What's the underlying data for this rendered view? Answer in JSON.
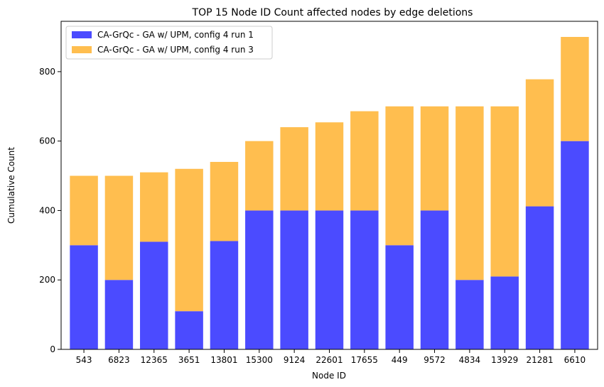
{
  "chart_data": {
    "type": "bar",
    "stacked": true,
    "title": "TOP 15 Node ID Count affected nodes by edge deletions",
    "xlabel": "Node ID",
    "ylabel": "Cumulative Count",
    "categories": [
      "543",
      "6823",
      "12365",
      "3651",
      "13801",
      "15300",
      "9124",
      "22601",
      "17655",
      "449",
      "9572",
      "4834",
      "13929",
      "21281",
      "6610"
    ],
    "ylim": [
      0,
      945
    ],
    "yticks": [
      0,
      200,
      400,
      600,
      800
    ],
    "grid": false,
    "legend_position": "top-left",
    "series": [
      {
        "name": "CA-GrQc - GA w/ UPM, config 4 run 1",
        "color": "#4b4bff",
        "values": [
          300,
          200,
          310,
          110,
          312,
          400,
          400,
          400,
          400,
          300,
          400,
          200,
          210,
          412,
          600
        ]
      },
      {
        "name": "CA-GrQc - GA w/ UPM, config 4 run 3",
        "color": "#ffbe4f",
        "values": [
          200,
          300,
          200,
          410,
          228,
          200,
          240,
          254,
          286,
          400,
          300,
          500,
          490,
          366,
          300
        ]
      }
    ]
  }
}
